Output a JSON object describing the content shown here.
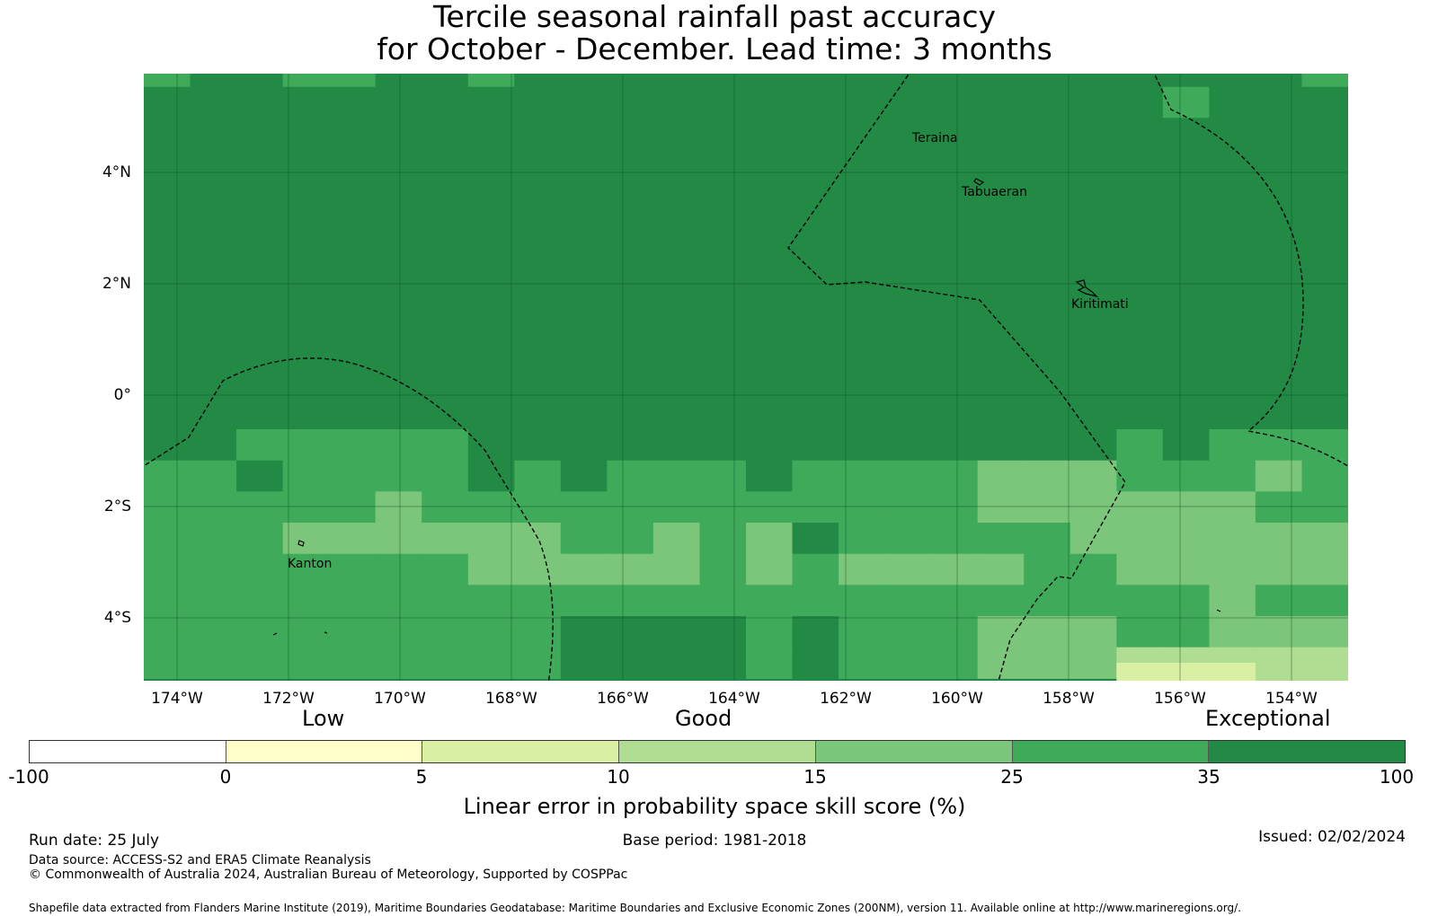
{
  "title": {
    "line1": "Tercile seasonal rainfall past accuracy",
    "line2": "for October - December. Lead time: 3 months"
  },
  "map": {
    "lat_labels": [
      "4°N",
      "2°N",
      "0°",
      "2°S",
      "4°S"
    ],
    "lon_labels": [
      "174°W",
      "172°W",
      "170°W",
      "168°W",
      "166°W",
      "164°W",
      "162°W",
      "160°W",
      "158°W",
      "156°W",
      "154°W"
    ],
    "places": {
      "teraina": "Teraina",
      "tabuaeran": "Tabuaeran",
      "kiritimati": "Kiritimati",
      "kanton": "Kanton"
    },
    "colors": {
      "band_35_100": "#228a45",
      "band_25_35": "#3fab5a",
      "band_15_25": "#7bc67a",
      "band_10_15": "#afdd91",
      "band_5_10": "#d9efa3",
      "band_0_5": "#ffffcc",
      "band_neg": "#ffffff"
    }
  },
  "legend": {
    "categories": {
      "low": "Low",
      "good": "Good",
      "exceptional": "Exceptional"
    },
    "ticks": [
      "-100",
      "0",
      "5",
      "10",
      "15",
      "25",
      "35",
      "100"
    ],
    "segment_colors": [
      "#ffffff",
      "#ffffcc",
      "#d9efa3",
      "#afdd91",
      "#7bc67a",
      "#3fab5a",
      "#228a45"
    ],
    "label": "Linear error in probability space skill score (%)"
  },
  "footer": {
    "run_date": "Run date: 25 July",
    "base_period": "Base period: 1981-2018",
    "issued": "Issued: 02/02/2024",
    "data_source": "Data source: ACCESS-S2 and ERA5 Climate Reanalysis",
    "copyright": "© Commonwealth of Australia 2024, Australian Bureau of Meteorology, Supported by COSPPac",
    "shapefile": "Shapefile data extracted from Flanders Marine Institute (2019), Maritime Boundaries Geodatabase: Maritime Boundaries and Exclusive Economic Zones (200NM), version 11. Available online at http://www.marineregions.org/."
  }
}
